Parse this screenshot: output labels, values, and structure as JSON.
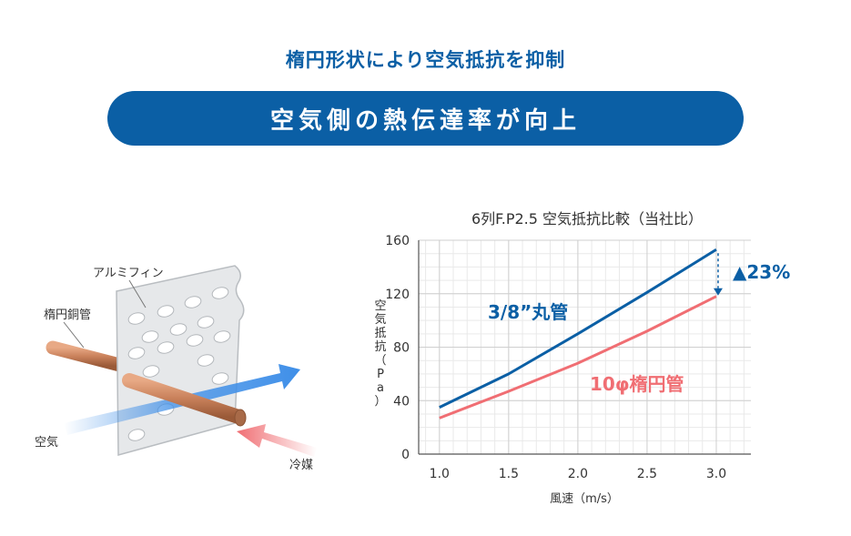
{
  "header": {
    "subtitle": "楕円形状により空気抵抗を抑制",
    "banner": "空気側の熱伝達率が向上"
  },
  "illustration": {
    "fin_label": "アルミフィン",
    "tube_label": "楕円銅管",
    "air_label": "空気",
    "refrigerant_label": "冷媒"
  },
  "chart_data": {
    "type": "line",
    "title": "6列F.P2.5 空気抵抗比較（当社比）",
    "xlabel": "風速（m/s）",
    "ylabel": "空気抵抗（Pa）",
    "xlim": [
      0.85,
      3.25
    ],
    "ylim": [
      0,
      160
    ],
    "xticks": [
      "1.0",
      "1.5",
      "2.0",
      "2.5",
      "3.0"
    ],
    "yticks": [
      "0",
      "40",
      "80",
      "120",
      "160"
    ],
    "grid": true,
    "series": [
      {
        "name": "3/8”丸管",
        "color": "#0b5fa5",
        "x": [
          1.0,
          1.5,
          2.0,
          2.5,
          3.0
        ],
        "values": [
          35,
          60,
          90,
          121,
          153
        ]
      },
      {
        "name": "10φ楕円管",
        "color": "#f06e73",
        "x": [
          1.0,
          1.5,
          2.0,
          2.5,
          3.0
        ],
        "values": [
          27,
          47,
          68,
          92,
          118
        ]
      }
    ],
    "annotation": "▲23%"
  },
  "colors": {
    "primary": "#0b5fa5",
    "accent": "#f06e73",
    "air_arrow": "#3f8fe8",
    "tube": "#c8805a"
  }
}
